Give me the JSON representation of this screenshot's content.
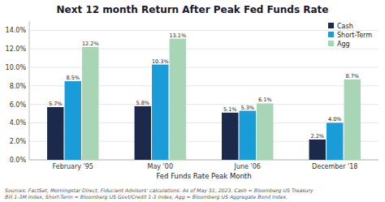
{
  "chart_data": {
    "type": "bar",
    "title": "Next 12 month Return After Peak Fed Funds Rate",
    "x_label": "Fed Funds Rate Peak Month",
    "categories": [
      "February '95",
      "May '00",
      "June '06",
      "December '18"
    ],
    "series": [
      {
        "name": "Cash",
        "color": "#1b2a4a",
        "values": [
          5.7,
          5.8,
          5.1,
          2.2
        ],
        "value_labels": [
          "5.7%",
          "5.8%",
          "5.1%",
          "2.2%"
        ]
      },
      {
        "name": "Short-Term",
        "color": "#1a9cd8",
        "values": [
          8.5,
          10.3,
          5.3,
          4.0
        ],
        "value_labels": [
          "8.5%",
          "10.3%",
          "5.3%",
          "4.0%"
        ]
      },
      {
        "name": "Agg",
        "color": "#a8d5b5",
        "values": [
          12.2,
          13.1,
          6.1,
          8.7
        ],
        "value_labels": [
          "12.2%",
          "13.1%",
          "6.1%",
          "8.7%"
        ]
      }
    ],
    "ylim": [
      0,
      15
    ],
    "yticks": [
      {
        "value": 0.0,
        "label": "0.0%"
      },
      {
        "value": 2.0,
        "label": "2.0%"
      },
      {
        "value": 4.0,
        "label": "4.0%"
      },
      {
        "value": 6.0,
        "label": "6.0%"
      },
      {
        "value": 8.0,
        "label": "8.0%"
      },
      {
        "value": 10.0,
        "label": "10.0%"
      },
      {
        "value": 12.0,
        "label": "12.0%"
      },
      {
        "value": 14.0,
        "label": "14.0%"
      }
    ],
    "grid": true,
    "legend": "upper right",
    "data_labels": true,
    "annotations": [
      "Sources: FactSet, Morningstar Direct, Fiducient Advisors' calculations. As of May 31, 2023. Cash = Bloomberg US Treasury\nBill 1-3M Index, Short-Term = Bloomberg US Govt/Credit 1-3 Index, Agg = Bloomberg US Aggregate Bond Index."
    ]
  }
}
